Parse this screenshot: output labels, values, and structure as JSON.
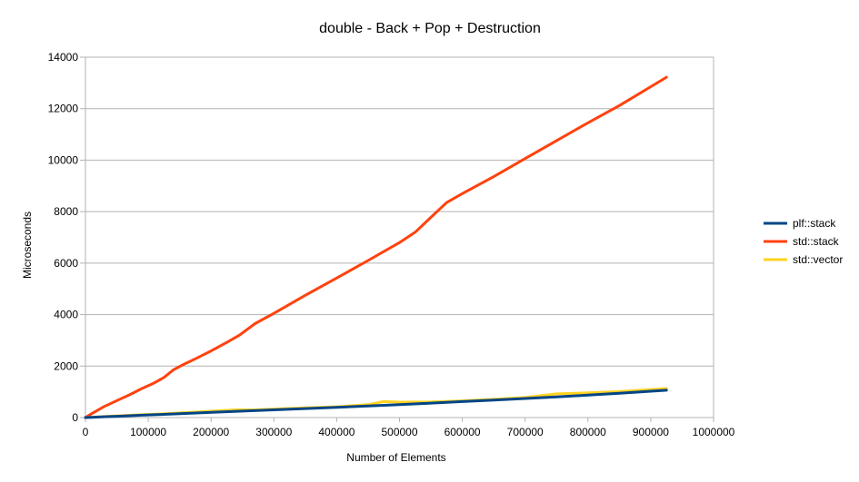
{
  "chart_data": {
    "type": "line",
    "title": "double - Back + Pop + Destruction",
    "xlabel": "Number of Elements",
    "ylabel": "Microseconds",
    "xlim": [
      0,
      1000000
    ],
    "ylim": [
      0,
      14000
    ],
    "xticks": [
      0,
      100000,
      200000,
      300000,
      400000,
      500000,
      600000,
      700000,
      800000,
      900000,
      1000000
    ],
    "yticks": [
      0,
      2000,
      4000,
      6000,
      8000,
      10000,
      12000,
      14000
    ],
    "grid": "horizontal",
    "legend_position": "right",
    "series": [
      {
        "name": "plf::stack",
        "color": "#004586",
        "x": [
          0,
          10000,
          30000,
          50000,
          70000,
          90000,
          120000,
          150000,
          180000,
          210000,
          250000,
          300000,
          350000,
          400000,
          450000,
          500000,
          550000,
          600000,
          650000,
          700000,
          750000,
          800000,
          850000,
          925000
        ],
        "y": [
          0,
          10,
          30,
          50,
          70,
          90,
          120,
          150,
          180,
          210,
          250,
          300,
          350,
          400,
          450,
          500,
          560,
          620,
          680,
          740,
          800,
          870,
          940,
          1060
        ]
      },
      {
        "name": "std::stack",
        "color": "#ff420e",
        "x": [
          0,
          10000,
          30000,
          50000,
          70000,
          90000,
          110000,
          125000,
          140000,
          155000,
          175000,
          200000,
          225000,
          245000,
          270000,
          300000,
          350000,
          400000,
          450000,
          500000,
          525000,
          550000,
          575000,
          600000,
          650000,
          700000,
          750000,
          800000,
          850000,
          925000
        ],
        "y": [
          0,
          150,
          430,
          660,
          880,
          1130,
          1350,
          1560,
          1850,
          2050,
          2280,
          2590,
          2920,
          3200,
          3650,
          4050,
          4750,
          5420,
          6100,
          6800,
          7200,
          7780,
          8350,
          8700,
          9360,
          10060,
          10760,
          11450,
          12120,
          13220
        ]
      },
      {
        "name": "std::vector",
        "color": "#ffd320",
        "x": [
          0,
          30000,
          60000,
          90000,
          120000,
          150000,
          180000,
          210000,
          240000,
          270000,
          300000,
          350000,
          400000,
          450000,
          475000,
          500000,
          550000,
          600000,
          650000,
          700000,
          750000,
          800000,
          850000,
          925000
        ],
        "y": [
          0,
          40,
          80,
          110,
          140,
          180,
          220,
          260,
          300,
          300,
          330,
          380,
          420,
          500,
          620,
          600,
          610,
          650,
          710,
          780,
          920,
          960,
          1010,
          1130
        ]
      }
    ]
  }
}
